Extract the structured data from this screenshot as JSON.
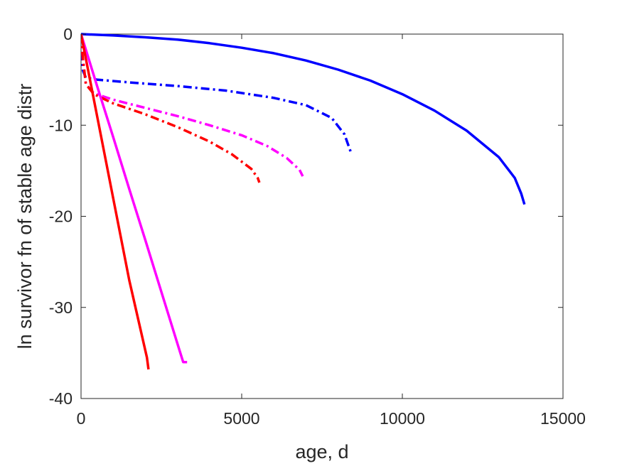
{
  "chart_data": {
    "type": "line",
    "title": "",
    "xlabel": "age, d",
    "ylabel": "ln survivor fn of stable age distr",
    "xlim": [
      0,
      15000
    ],
    "ylim": [
      -40,
      0
    ],
    "xticks": [
      0,
      5000,
      10000,
      15000
    ],
    "xtick_labels": [
      "0",
      "5000",
      "10000",
      "15000"
    ],
    "yticks": [
      0,
      -10,
      -20,
      -30,
      -40
    ],
    "ytick_labels": [
      "0",
      "-10",
      "-20",
      "-30",
      "-40"
    ],
    "grid": false,
    "legend": "none",
    "series": [
      {
        "color": "#0000ff",
        "style": "solid",
        "points": [
          [
            0,
            0
          ],
          [
            1000,
            -0.15
          ],
          [
            2000,
            -0.35
          ],
          [
            3000,
            -0.6
          ],
          [
            4000,
            -1.0
          ],
          [
            5000,
            -1.5
          ],
          [
            6000,
            -2.1
          ],
          [
            7000,
            -2.9
          ],
          [
            8000,
            -3.9
          ],
          [
            9000,
            -5.1
          ],
          [
            10000,
            -6.6
          ],
          [
            11000,
            -8.4
          ],
          [
            12000,
            -10.6
          ],
          [
            13000,
            -13.5
          ],
          [
            13500,
            -15.8
          ],
          [
            13700,
            -17.5
          ],
          [
            13800,
            -18.7
          ]
        ]
      },
      {
        "color": "#0000ff",
        "style": "dashdot",
        "points": [
          [
            0,
            0
          ],
          [
            20,
            -1.5
          ],
          [
            60,
            -4.0
          ],
          [
            150,
            -4.8
          ],
          [
            500,
            -5.0
          ],
          [
            1500,
            -5.3
          ],
          [
            3000,
            -5.7
          ],
          [
            4500,
            -6.2
          ],
          [
            6000,
            -7.0
          ],
          [
            7000,
            -7.8
          ],
          [
            7800,
            -9.2
          ],
          [
            8200,
            -11.0
          ],
          [
            8350,
            -12.5
          ],
          [
            8400,
            -13.0
          ]
        ]
      },
      {
        "color": "#ff00ff",
        "style": "dashdot",
        "points": [
          [
            0,
            0
          ],
          [
            50,
            -2.5
          ],
          [
            150,
            -5.5
          ],
          [
            400,
            -6.5
          ],
          [
            1000,
            -7.2
          ],
          [
            2000,
            -8.1
          ],
          [
            3000,
            -9.0
          ],
          [
            4000,
            -10.0
          ],
          [
            5000,
            -11.1
          ],
          [
            5800,
            -12.3
          ],
          [
            6400,
            -13.6
          ],
          [
            6800,
            -14.9
          ],
          [
            6900,
            -15.6
          ]
        ]
      },
      {
        "color": "#ff0000",
        "style": "dashdot",
        "points": [
          [
            0,
            0
          ],
          [
            50,
            -2.5
          ],
          [
            150,
            -5.5
          ],
          [
            400,
            -6.6
          ],
          [
            1000,
            -7.6
          ],
          [
            2000,
            -8.8
          ],
          [
            3000,
            -10.2
          ],
          [
            4000,
            -11.8
          ],
          [
            4700,
            -13.2
          ],
          [
            5300,
            -14.8
          ],
          [
            5500,
            -15.8
          ],
          [
            5550,
            -16.3
          ]
        ]
      },
      {
        "color": "#ff00ff",
        "style": "solid",
        "points": [
          [
            0,
            0
          ],
          [
            500,
            -5.7
          ],
          [
            1000,
            -11.3
          ],
          [
            1500,
            -17.0
          ],
          [
            2000,
            -22.6
          ],
          [
            2500,
            -28.3
          ],
          [
            3100,
            -35.1
          ],
          [
            3180,
            -36.0
          ],
          [
            3300,
            -36.0
          ]
        ]
      },
      {
        "color": "#ff0000",
        "style": "solid",
        "points": [
          [
            0,
            0
          ],
          [
            500,
            -9.0
          ],
          [
            1000,
            -18.0
          ],
          [
            1500,
            -27.0
          ],
          [
            2050,
            -35.5
          ],
          [
            2100,
            -36.8
          ]
        ]
      }
    ]
  }
}
